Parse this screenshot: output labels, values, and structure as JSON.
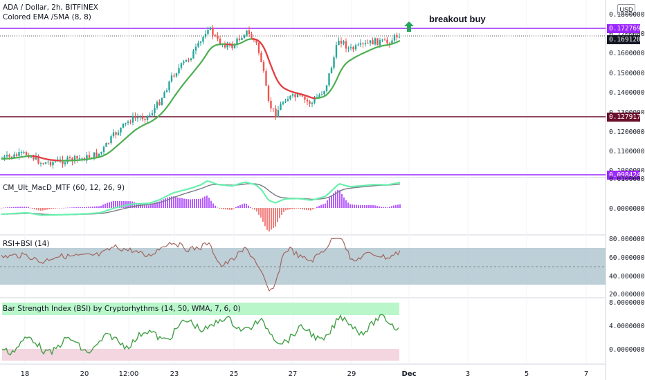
{
  "header": {
    "symbol_line": "ADA / Dollar, 2h, BITFINEX",
    "indicator_line": "Colored EMA /SMA (8, 8)",
    "currency_badge": "USD"
  },
  "annotation": {
    "text": "breakout buy",
    "arrow_icon": "up-arrow-icon",
    "arrow_color": "#26a65b"
  },
  "price_axis": {
    "labels": [
      "0.18000000",
      "0.17000000",
      "0.16000000",
      "0.15000000",
      "0.14000000",
      "0.13000000",
      "0.12000000",
      "0.11000000",
      "0.10000000"
    ],
    "tags": [
      {
        "value": "0.17276984",
        "color": "#9c27ff"
      },
      {
        "value": "0.16912000",
        "color": "#131722"
      },
      {
        "value": "0.12791725",
        "color": "#6b0f2a"
      },
      {
        "value": "0.09842437",
        "color": "#9c27ff"
      }
    ]
  },
  "panes": {
    "macd": {
      "title": "CM_Ult_MacD_MTF (60, 12, 26, 9)",
      "labels": [
        "0.01000000",
        "0.00000000"
      ]
    },
    "rsi": {
      "title": "RSI+BSI (14)",
      "labels": [
        "80.00000000",
        "60.00000000",
        "40.00000000",
        "20.00000000"
      ]
    },
    "bsi": {
      "title": "Bar Strength Index (BSI) by Cryptorhythms (14, 50, WMA, 7, 6, 0)",
      "labels": [
        "8.00000000",
        "4.00000000",
        "0.00000000"
      ]
    }
  },
  "time_axis": [
    "18",
    "20",
    "12:00",
    "23",
    "25",
    "27",
    "29",
    "Dec",
    "3",
    "5",
    "7"
  ],
  "colors": {
    "bull": "#26a69a",
    "bear": "#ef5350",
    "ema_up": "#4caf50",
    "ema_down": "#f23645",
    "resistance": "#9c27ff",
    "support": "#6b0f2a",
    "rsi_band": "#b2c7d0",
    "bsi_high": "#b9f6ca",
    "bsi_low": "#f3d6df"
  }
}
